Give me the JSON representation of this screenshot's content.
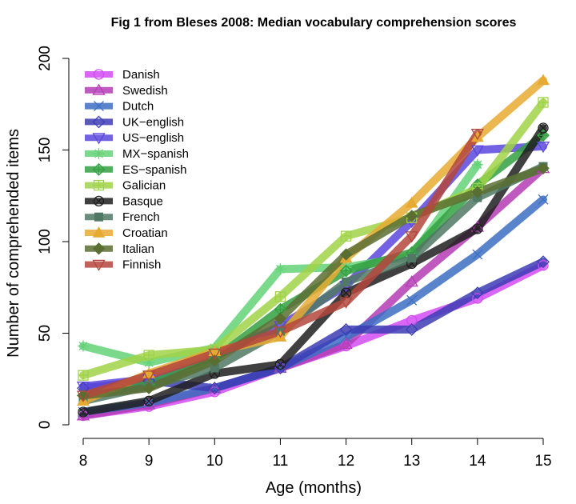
{
  "chart_data": {
    "type": "line",
    "title": "Fig 1 from Bleses 2008: Median vocabulary comprehension scores",
    "xlabel": "Age (months)",
    "ylabel": "Number of comprehended items",
    "x": [
      8,
      9,
      10,
      11,
      12,
      13,
      14,
      15
    ],
    "xlim": [
      8,
      15
    ],
    "ylim": [
      0,
      200
    ],
    "x_ticks": [
      "8",
      "9",
      "10",
      "11",
      "12",
      "13",
      "14",
      "15"
    ],
    "y_ticks": [
      "0",
      "50",
      "100",
      "150",
      "200"
    ],
    "grid": false,
    "legend_position": "top-left",
    "series": [
      {
        "name": "Danish",
        "color": "#d24bf2",
        "marker": "circle",
        "values": [
          5,
          10,
          18,
          31,
          43,
          57,
          69,
          87
        ]
      },
      {
        "name": "Swedish",
        "color": "#b43cb4",
        "marker": "triangle-up",
        "values": [
          5,
          11,
          20,
          31,
          44,
          78,
          108,
          140
        ]
      },
      {
        "name": "Dutch",
        "color": "#3c6ec3",
        "marker": "x",
        "values": [
          7,
          12,
          20,
          31,
          48,
          68,
          93,
          123
        ]
      },
      {
        "name": "UK−english",
        "color": "#3c3cb4",
        "marker": "diamond",
        "values": [
          20,
          24,
          20,
          31,
          52,
          52,
          72,
          89
        ]
      },
      {
        "name": "US−english",
        "color": "#5a46dc",
        "marker": "triangle-down",
        "values": [
          21,
          25,
          37,
          54,
          76,
          111,
          150,
          152
        ]
      },
      {
        "name": "MX−spanish",
        "color": "#64d278",
        "marker": "asterisk",
        "values": [
          43,
          34,
          42,
          85,
          86,
          92,
          142,
          null
        ]
      },
      {
        "name": "ES−spanish",
        "color": "#32a041",
        "marker": "diamond-plus",
        "values": [
          16,
          22,
          36,
          63,
          84,
          94,
          131,
          158
        ]
      },
      {
        "name": "Galician",
        "color": "#a0d246",
        "marker": "square-plus",
        "values": [
          27,
          38,
          41,
          70,
          103,
          113,
          129,
          176
        ]
      },
      {
        "name": "Basque",
        "color": "#1e1e1e",
        "marker": "circle-x",
        "values": [
          7,
          13,
          28,
          33,
          72,
          88,
          107,
          162
        ]
      },
      {
        "name": "French",
        "color": "#507864",
        "marker": "square-filled",
        "values": [
          13,
          21,
          31,
          51,
          78,
          91,
          124,
          141
        ]
      },
      {
        "name": "Croatian",
        "color": "#e6aa32",
        "marker": "triangle-filled",
        "values": [
          13,
          28,
          40,
          48,
          91,
          121,
          157,
          188
        ]
      },
      {
        "name": "Italian",
        "color": "#5a6e32",
        "marker": "diamond-filled",
        "values": [
          16,
          20,
          35,
          58,
          93,
          114,
          127,
          140
        ]
      },
      {
        "name": "Finnish",
        "color": "#b4463c",
        "marker": "triangle-down",
        "values": [
          16,
          27,
          39,
          51,
          67,
          103,
          159,
          null
        ]
      }
    ]
  }
}
